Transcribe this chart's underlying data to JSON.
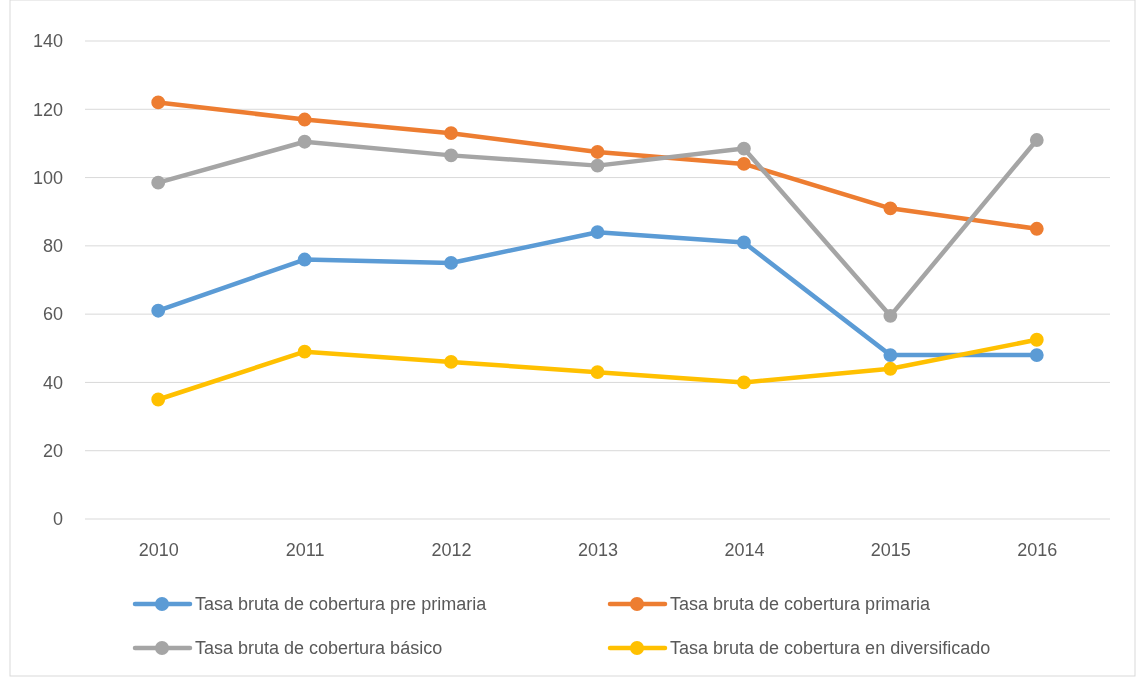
{
  "chart_data": {
    "type": "line",
    "categories": [
      "2010",
      "2011",
      "2012",
      "2013",
      "2014",
      "2015",
      "2016"
    ],
    "series": [
      {
        "name": "Tasa bruta de cobertura pre primaria",
        "color": "#5b9bd5",
        "values": [
          61,
          76,
          75,
          84,
          81,
          48,
          48
        ]
      },
      {
        "name": "Tasa bruta de cobertura primaria",
        "color": "#ed7d31",
        "values": [
          122,
          117,
          113,
          107.5,
          104,
          91,
          85
        ]
      },
      {
        "name": "Tasa bruta de cobertura básico",
        "color": "#a5a5a5",
        "values": [
          98.5,
          110.5,
          106.5,
          103.5,
          108.5,
          59.5,
          111
        ]
      },
      {
        "name": "Tasa bruta de cobertura en diversificado",
        "color": "#ffc000",
        "values": [
          35,
          49,
          46,
          43,
          40,
          44,
          52.5
        ]
      }
    ],
    "ylim": [
      0,
      140
    ],
    "yticks": [
      0,
      20,
      40,
      60,
      80,
      100,
      120,
      140
    ],
    "grid": "y",
    "legend": "bottom",
    "marker": "circle",
    "line_style": "solid"
  }
}
